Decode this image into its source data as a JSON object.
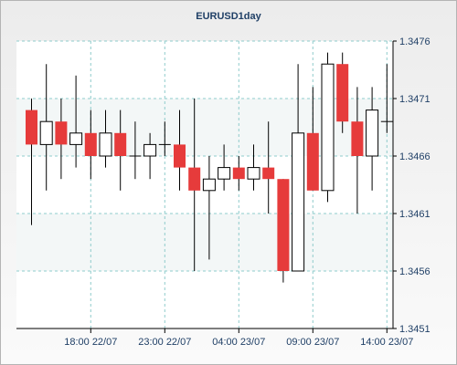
{
  "chart_data": {
    "type": "candlestick",
    "title": "EURUSD1day",
    "x_tick_labels": [
      "18:00 22/07",
      "23:00 22/07",
      "04:00 23/07",
      "09:00 23/07",
      "14:00 23/07"
    ],
    "y_tick_labels": [
      "1.3451",
      "1.3456",
      "1.3461",
      "1.3466",
      "1.3471",
      "1.3476"
    ],
    "ylim": [
      1.3451,
      1.3476
    ],
    "grid": true,
    "colors": {
      "up": "#ffffff",
      "down": "#e63b3b",
      "outline": "#000000",
      "grid": "#8fcccc"
    },
    "candles": [
      {
        "open": 1.347,
        "high": 1.3471,
        "low": 1.346,
        "close": 1.3467
      },
      {
        "open": 1.3467,
        "high": 1.3474,
        "low": 1.3463,
        "close": 1.3469
      },
      {
        "open": 1.3469,
        "high": 1.3471,
        "low": 1.3464,
        "close": 1.3467
      },
      {
        "open": 1.3467,
        "high": 1.3473,
        "low": 1.3465,
        "close": 1.3468
      },
      {
        "open": 1.3468,
        "high": 1.347,
        "low": 1.3464,
        "close": 1.3466
      },
      {
        "open": 1.3466,
        "high": 1.347,
        "low": 1.3465,
        "close": 1.3468
      },
      {
        "open": 1.3468,
        "high": 1.347,
        "low": 1.3463,
        "close": 1.3466
      },
      {
        "open": 1.3466,
        "high": 1.3469,
        "low": 1.3464,
        "close": 1.3466
      },
      {
        "open": 1.3466,
        "high": 1.3468,
        "low": 1.3464,
        "close": 1.3467
      },
      {
        "open": 1.3467,
        "high": 1.3469,
        "low": 1.3466,
        "close": 1.3467
      },
      {
        "open": 1.3467,
        "high": 1.347,
        "low": 1.3463,
        "close": 1.3465
      },
      {
        "open": 1.3465,
        "high": 1.3471,
        "low": 1.3456,
        "close": 1.3463
      },
      {
        "open": 1.3463,
        "high": 1.3466,
        "low": 1.3457,
        "close": 1.3464
      },
      {
        "open": 1.3464,
        "high": 1.3467,
        "low": 1.3463,
        "close": 1.3465
      },
      {
        "open": 1.3465,
        "high": 1.3466,
        "low": 1.3463,
        "close": 1.3464
      },
      {
        "open": 1.3464,
        "high": 1.3467,
        "low": 1.3463,
        "close": 1.3465
      },
      {
        "open": 1.3465,
        "high": 1.3469,
        "low": 1.3461,
        "close": 1.3464
      },
      {
        "open": 1.3464,
        "high": 1.3464,
        "low": 1.3455,
        "close": 1.3456
      },
      {
        "open": 1.3456,
        "high": 1.3474,
        "low": 1.3456,
        "close": 1.3468
      },
      {
        "open": 1.3468,
        "high": 1.3472,
        "low": 1.3463,
        "close": 1.3463
      },
      {
        "open": 1.3463,
        "high": 1.3475,
        "low": 1.3462,
        "close": 1.3474
      },
      {
        "open": 1.3474,
        "high": 1.3475,
        "low": 1.3468,
        "close": 1.3469
      },
      {
        "open": 1.3469,
        "high": 1.3472,
        "low": 1.3461,
        "close": 1.3466
      },
      {
        "open": 1.3466,
        "high": 1.3472,
        "low": 1.3463,
        "close": 1.347
      },
      {
        "open": 1.3469,
        "high": 1.3474,
        "low": 1.3468,
        "close": 1.3469
      }
    ]
  }
}
